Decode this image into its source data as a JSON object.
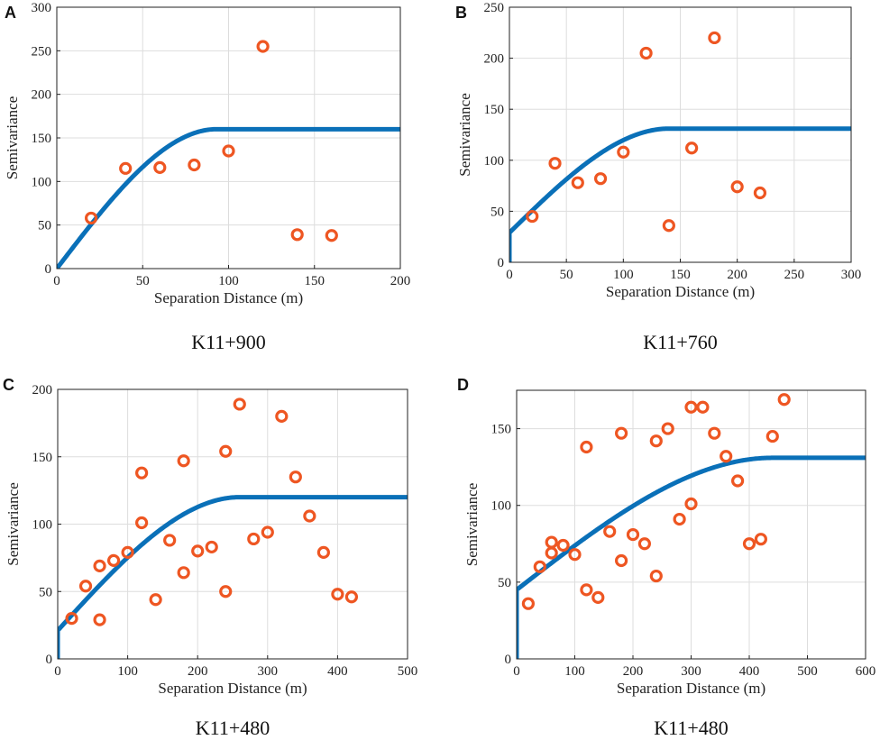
{
  "colors": {
    "model": "#0a70b8",
    "points": "#ee5622"
  },
  "chart_data": [
    {
      "type": "scatter",
      "panel": "A",
      "caption": "K11+900",
      "xlabel": "Separation Distance (m)",
      "ylabel": "Semivariance",
      "xlim": [
        0,
        200
      ],
      "ylim": [
        0,
        300
      ],
      "xticks": [
        "0",
        "50",
        "100",
        "150",
        "200"
      ],
      "yticks": [
        "0",
        "50",
        "100",
        "150",
        "200",
        "250",
        "300"
      ],
      "points": [
        [
          20,
          58
        ],
        [
          40,
          115
        ],
        [
          60,
          116
        ],
        [
          80,
          119
        ],
        [
          100,
          135
        ],
        [
          120,
          255
        ],
        [
          140,
          39
        ],
        [
          160,
          38
        ]
      ],
      "model": {
        "nugget": 0,
        "sill": 160,
        "range": 93
      }
    },
    {
      "type": "scatter",
      "panel": "B",
      "caption": "K11+760",
      "xlabel": "Separation Distance (m)",
      "ylabel": "Semivariance",
      "xlim": [
        0,
        300
      ],
      "ylim": [
        0,
        250
      ],
      "xticks": [
        "0",
        "50",
        "100",
        "150",
        "200",
        "250",
        "300"
      ],
      "yticks": [
        "0",
        "50",
        "100",
        "150",
        "200",
        "250"
      ],
      "points": [
        [
          20,
          45
        ],
        [
          40,
          97
        ],
        [
          60,
          78
        ],
        [
          80,
          82
        ],
        [
          100,
          108
        ],
        [
          120,
          205
        ],
        [
          140,
          36
        ],
        [
          160,
          112
        ],
        [
          180,
          220
        ],
        [
          200,
          74
        ],
        [
          220,
          68
        ]
      ],
      "model": {
        "nugget": 29,
        "sill": 131,
        "range": 140
      }
    },
    {
      "type": "scatter",
      "panel": "C",
      "caption": "K11+480",
      "xlabel": "Separation Distance (m)",
      "ylabel": "Semivariance",
      "xlim": [
        0,
        500
      ],
      "ylim": [
        0,
        200
      ],
      "xticks": [
        "0",
        "100",
        "200",
        "300",
        "400",
        "500"
      ],
      "yticks": [
        "0",
        "50",
        "100",
        "150",
        "200"
      ],
      "points": [
        [
          20,
          30
        ],
        [
          40,
          54
        ],
        [
          60,
          69
        ],
        [
          60,
          29
        ],
        [
          80,
          73
        ],
        [
          100,
          79
        ],
        [
          120,
          138
        ],
        [
          120,
          101
        ],
        [
          140,
          44
        ],
        [
          160,
          88
        ],
        [
          180,
          147
        ],
        [
          180,
          64
        ],
        [
          200,
          80
        ],
        [
          220,
          83
        ],
        [
          240,
          154
        ],
        [
          240,
          50
        ],
        [
          260,
          189
        ],
        [
          280,
          89
        ],
        [
          300,
          94
        ],
        [
          320,
          180
        ],
        [
          340,
          135
        ],
        [
          360,
          106
        ],
        [
          380,
          79
        ],
        [
          400,
          48
        ],
        [
          420,
          46
        ]
      ],
      "model": {
        "nugget": 21,
        "sill": 120,
        "range": 260
      }
    },
    {
      "type": "scatter",
      "panel": "D",
      "caption": "K11+480",
      "xlabel": "Separation Distance (m)",
      "ylabel": "Semivariance",
      "xlim": [
        0,
        600
      ],
      "ylim": [
        0,
        175
      ],
      "xticks": [
        "0",
        "100",
        "200",
        "300",
        "400",
        "500",
        "600"
      ],
      "yticks": [
        "0",
        "50",
        "100",
        "150"
      ],
      "points": [
        [
          20,
          36
        ],
        [
          40,
          60
        ],
        [
          60,
          69
        ],
        [
          60,
          76
        ],
        [
          80,
          74
        ],
        [
          100,
          68
        ],
        [
          120,
          138
        ],
        [
          120,
          45
        ],
        [
          140,
          40
        ],
        [
          160,
          83
        ],
        [
          180,
          147
        ],
        [
          180,
          64
        ],
        [
          200,
          81
        ],
        [
          220,
          75
        ],
        [
          240,
          142
        ],
        [
          240,
          54
        ],
        [
          260,
          150
        ],
        [
          280,
          91
        ],
        [
          300,
          164
        ],
        [
          300,
          101
        ],
        [
          320,
          164
        ],
        [
          340,
          147
        ],
        [
          360,
          132
        ],
        [
          380,
          116
        ],
        [
          400,
          75
        ],
        [
          420,
          78
        ],
        [
          440,
          145
        ],
        [
          460,
          169
        ]
      ],
      "model": {
        "nugget": 45,
        "sill": 131,
        "range": 440
      }
    }
  ]
}
